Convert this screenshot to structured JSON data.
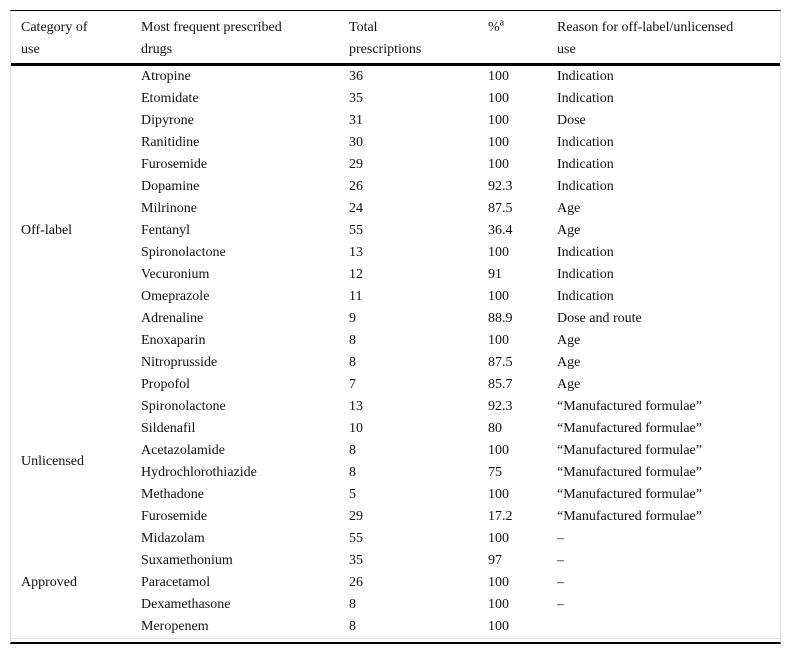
{
  "table": {
    "headers": {
      "category": {
        "line1": "Category of",
        "line2": "use"
      },
      "drugs": {
        "line1": "Most frequent prescribed",
        "line2": "drugs"
      },
      "total": {
        "line1": "Total",
        "line2": "prescriptions"
      },
      "percent": {
        "symbol": "%",
        "sup": "a"
      },
      "reason": {
        "line1": "Reason for off-label/unlicensed",
        "line2": "use"
      }
    },
    "groups": [
      {
        "category": "Off-label",
        "rows": [
          {
            "drug": "Atropine",
            "total": "36",
            "pct": "100",
            "reason": "Indication"
          },
          {
            "drug": "Etomidate",
            "total": "35",
            "pct": "100",
            "reason": "Indication"
          },
          {
            "drug": "Dipyrone",
            "total": "31",
            "pct": "100",
            "reason": "Dose"
          },
          {
            "drug": "Ranitidine",
            "total": "30",
            "pct": "100",
            "reason": "Indication"
          },
          {
            "drug": "Furosemide",
            "total": "29",
            "pct": "100",
            "reason": "Indication"
          },
          {
            "drug": "Dopamine",
            "total": "26",
            "pct": "92.3",
            "reason": "Indication"
          },
          {
            "drug": "Milrinone",
            "total": "24",
            "pct": "87.5",
            "reason": "Age"
          },
          {
            "drug": "Fentanyl",
            "total": "55",
            "pct": "36.4",
            "reason": "Age"
          },
          {
            "drug": "Spironolactone",
            "total": "13",
            "pct": "100",
            "reason": "Indication"
          },
          {
            "drug": "Vecuronium",
            "total": "12",
            "pct": "91",
            "reason": "Indication"
          },
          {
            "drug": "Omeprazole",
            "total": "11",
            "pct": "100",
            "reason": "Indication"
          },
          {
            "drug": "Adrenaline",
            "total": "9",
            "pct": "88.9",
            "reason": "Dose and route"
          },
          {
            "drug": "Enoxaparin",
            "total": "8",
            "pct": "100",
            "reason": "Age"
          },
          {
            "drug": "Nitroprusside",
            "total": "8",
            "pct": "87.5",
            "reason": "Age"
          },
          {
            "drug": "Propofol",
            "total": "7",
            "pct": "85.7",
            "reason": "Age"
          }
        ]
      },
      {
        "category": "Unlicensed",
        "rows": [
          {
            "drug": "Spironolactone",
            "total": "13",
            "pct": "92.3",
            "reason": "“Manufactured formulae”"
          },
          {
            "drug": "Sildenafil",
            "total": "10",
            "pct": "80",
            "reason": "“Manufactured formulae”"
          },
          {
            "drug": "Acetazolamide",
            "total": "8",
            "pct": "100",
            "reason": "“Manufactured formulae”"
          },
          {
            "drug": "Hydrochlorothiazide",
            "total": "8",
            "pct": "75",
            "reason": "“Manufactured formulae”"
          },
          {
            "drug": "Methadone",
            "total": "5",
            "pct": "100",
            "reason": "“Manufactured formulae”"
          },
          {
            "drug": "Furosemide",
            "total": "29",
            "pct": "17.2",
            "reason": "“Manufactured formulae”"
          }
        ]
      },
      {
        "category": "Approved",
        "rows": [
          {
            "drug": "Midazolam",
            "total": "55",
            "pct": "100",
            "reason": "–"
          },
          {
            "drug": "Suxamethonium",
            "total": "35",
            "pct": "97",
            "reason": "–"
          },
          {
            "drug": "Paracetamol",
            "total": "26",
            "pct": "100",
            "reason": "–"
          },
          {
            "drug": "Dexamethasone",
            "total": "8",
            "pct": "100",
            "reason": "–"
          },
          {
            "drug": "Meropenem",
            "total": "8",
            "pct": "100",
            "reason": ""
          }
        ]
      }
    ],
    "colors": {
      "rule": "#000000",
      "faint_border": "#dcdcdc",
      "text": "#111111",
      "background": "#ffffff"
    }
  }
}
